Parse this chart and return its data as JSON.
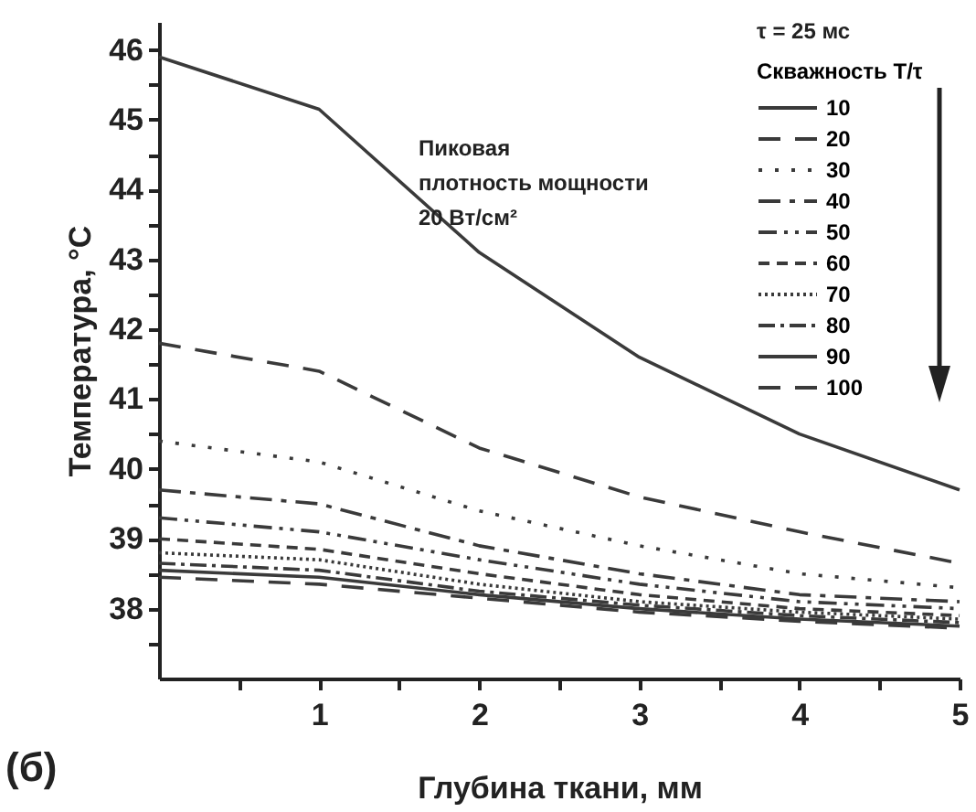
{
  "chart_data": {
    "type": "line",
    "xlabel": "Глубина ткани, мм",
    "ylabel": "Температура, °C",
    "legend_title": "Скважность T/τ",
    "annotations": [
      "τ = 25 мс",
      "Пиковая\nплотность мощности\n20 Вт/см²",
      "(б)"
    ],
    "x": [
      0,
      1,
      2,
      3,
      4,
      5
    ],
    "series": [
      {
        "name": "10",
        "color": "#3a3a3a",
        "line_style": "solid",
        "values": [
          45.9,
          45.15,
          43.1,
          41.6,
          40.5,
          39.7
        ]
      },
      {
        "name": "20",
        "color": "#3a3a3a",
        "line_style": "dashed",
        "values": [
          41.8,
          41.4,
          40.3,
          39.6,
          39.1,
          38.65
        ]
      },
      {
        "name": "30",
        "color": "#3a3a3a",
        "line_style": "dotted",
        "values": [
          40.4,
          40.1,
          39.4,
          38.9,
          38.5,
          38.3
        ]
      },
      {
        "name": "40",
        "color": "#3a3a3a",
        "line_style": "longdashdot",
        "values": [
          39.7,
          39.5,
          38.9,
          38.5,
          38.2,
          38.1
        ]
      },
      {
        "name": "50",
        "color": "#3a3a3a",
        "line_style": "dashdotdot",
        "values": [
          39.3,
          39.1,
          38.7,
          38.35,
          38.1,
          38.0
        ]
      },
      {
        "name": "60",
        "color": "#3a3a3a",
        "line_style": "shortdash",
        "values": [
          39.0,
          38.85,
          38.5,
          38.2,
          38.0,
          37.9
        ]
      },
      {
        "name": "70",
        "color": "#3a3a3a",
        "line_style": "densedot",
        "values": [
          38.8,
          38.7,
          38.35,
          38.1,
          37.95,
          37.85
        ]
      },
      {
        "name": "80",
        "color": "#3a3a3a",
        "line_style": "dashdot",
        "values": [
          38.65,
          38.55,
          38.25,
          38.05,
          37.9,
          37.8
        ]
      },
      {
        "name": "90",
        "color": "#3a3a3a",
        "line_style": "solid",
        "values": [
          38.55,
          38.45,
          38.2,
          38.0,
          37.85,
          37.75
        ]
      },
      {
        "name": "100",
        "color": "#3a3a3a",
        "line_style": "dashed",
        "values": [
          38.45,
          38.35,
          38.15,
          37.95,
          37.82,
          37.72
        ]
      }
    ],
    "xlim": [
      0,
      5
    ],
    "xticks": [
      {
        "value": 0.5,
        "label": null
      },
      1,
      {
        "value": 1.5,
        "label": null
      },
      2,
      {
        "value": 2.5,
        "label": null
      },
      3,
      {
        "value": 3.5,
        "label": null
      },
      4,
      {
        "value": 4.5,
        "label": null
      },
      5
    ],
    "ylim": [
      37,
      46.4
    ],
    "yticks": [
      {
        "value": 37.5,
        "label": null
      },
      38,
      {
        "value": 38.5,
        "label": null
      },
      39,
      {
        "value": 39.5,
        "label": null
      },
      40,
      {
        "value": 40.5,
        "label": null
      },
      41,
      {
        "value": 41.5,
        "label": null
      },
      42,
      {
        "value": 42.5,
        "label": null
      },
      43,
      {
        "value": 43.5,
        "label": null
      },
      44,
      {
        "value": 44.5,
        "label": null
      },
      45,
      {
        "value": 45.5,
        "label": null
      },
      46
    ],
    "legend": "top right",
    "grid": false,
    "marker": "none"
  }
}
